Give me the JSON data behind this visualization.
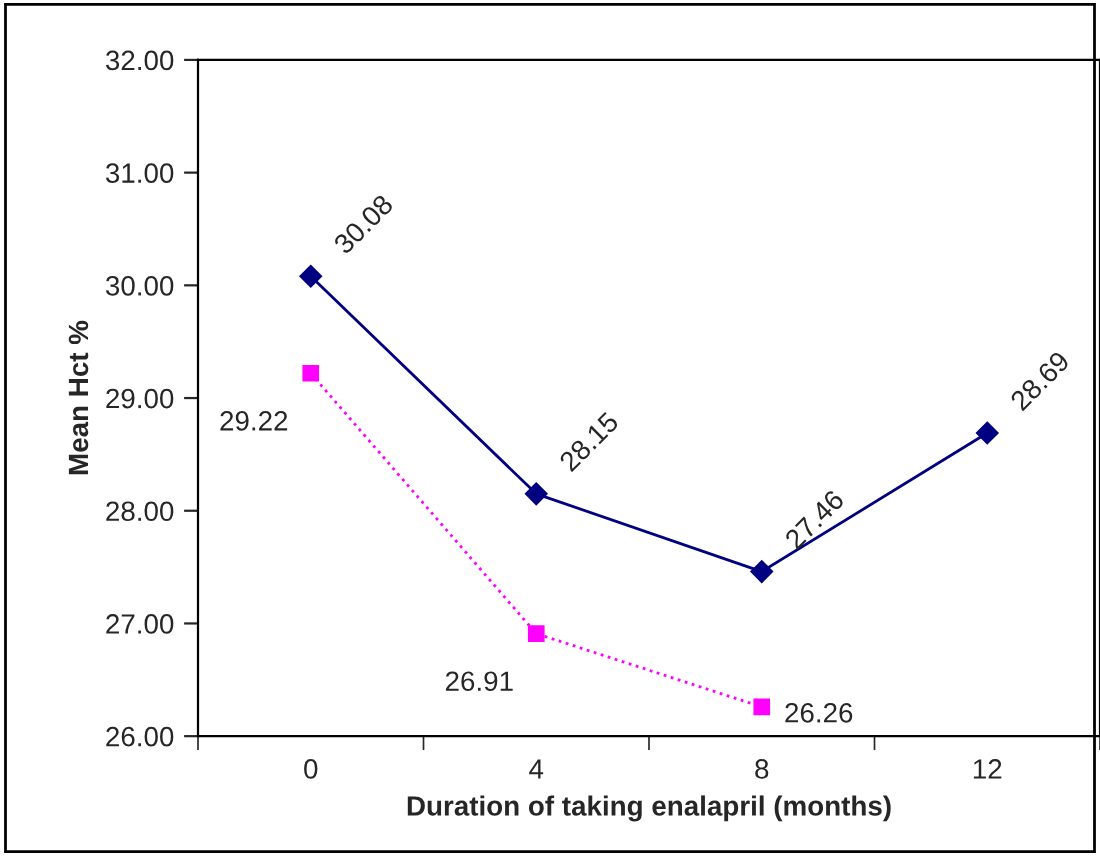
{
  "chart_data": {
    "type": "line",
    "xlabel": "Duration of taking enalapril (months)",
    "ylabel": "Mean Hct %",
    "categories": [
      "0",
      "4",
      "8",
      "12"
    ],
    "series": [
      {
        "color": "#000080",
        "values": [
          30.08,
          28.15,
          27.46,
          28.69
        ],
        "marker": "diamond",
        "line_style": "solid"
      },
      {
        "color": "#ff00ff",
        "values": [
          29.22,
          26.91,
          26.26,
          null
        ],
        "marker": "square",
        "line_style": "dotted"
      }
    ],
    "ylim": [
      26,
      32
    ],
    "yticks": [
      {
        "value": 26,
        "label": "26.00"
      },
      {
        "value": 27,
        "label": "27.00"
      },
      {
        "value": 28,
        "label": "28.00"
      },
      {
        "value": 29,
        "label": "29.00"
      },
      {
        "value": 30,
        "label": "30.00"
      },
      {
        "value": 31,
        "label": "31.00"
      },
      {
        "value": 32,
        "label": "32.00"
      }
    ],
    "data_labels": true,
    "grid": false,
    "legend": false
  }
}
